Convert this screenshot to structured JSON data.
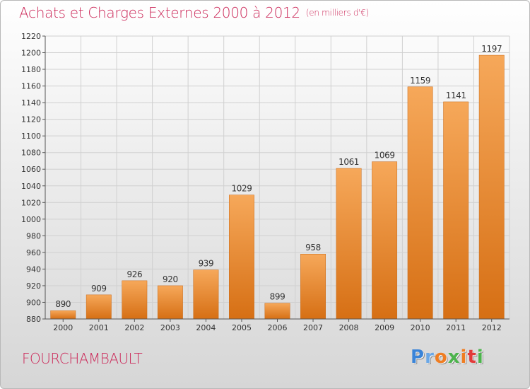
{
  "header": {
    "title": "Achats et Charges Externes 2000 à 2012",
    "unit": "(en milliers d'€)"
  },
  "footer": {
    "commune": "FOURCHAMBAULT",
    "logo_text": "Proxiti"
  },
  "colors": {
    "bar_top": "#f6a85a",
    "bar_bottom": "#d66f14",
    "title": "#cc2a5a",
    "grid": "#d0d0d0"
  },
  "chart_data": {
    "type": "bar",
    "title": "Achats et Charges Externes 2000 à 2012",
    "subtitle": "(en milliers d'€)",
    "xlabel": "",
    "ylabel": "",
    "categories": [
      "2000",
      "2001",
      "2002",
      "2003",
      "2004",
      "2005",
      "2006",
      "2007",
      "2008",
      "2009",
      "2010",
      "2011",
      "2012"
    ],
    "values": [
      890,
      909,
      926,
      920,
      939,
      1029,
      899,
      958,
      1061,
      1069,
      1159,
      1141,
      1197
    ],
    "ylim": [
      880,
      1220
    ],
    "yticks": [
      880,
      900,
      920,
      940,
      960,
      980,
      1000,
      1020,
      1040,
      1060,
      1080,
      1100,
      1120,
      1140,
      1160,
      1180,
      1200,
      1220
    ],
    "grid": true,
    "data_labels": true
  }
}
